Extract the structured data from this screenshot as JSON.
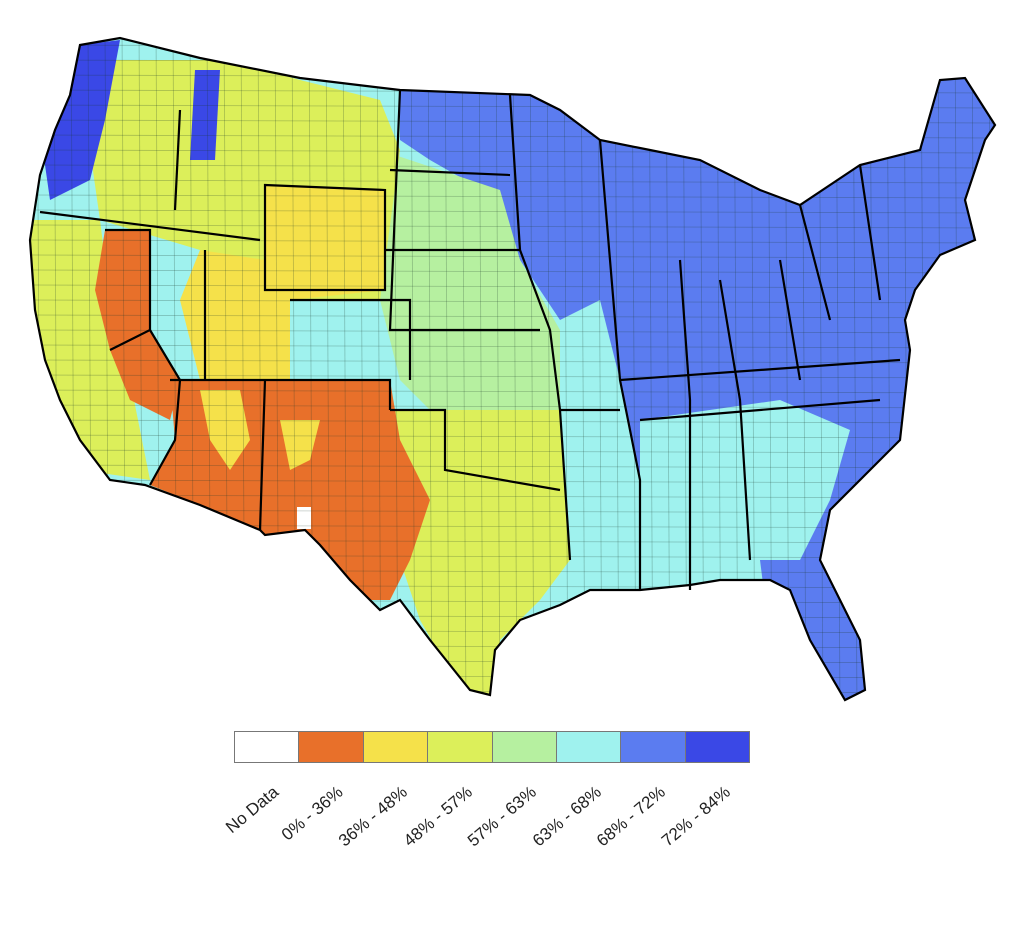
{
  "map": {
    "region": "Contiguous United States",
    "legend": {
      "classes": [
        {
          "label": "No Data",
          "color": "#ffffff"
        },
        {
          "label": "0% - 36%",
          "color": "#e8702a"
        },
        {
          "label": "36% - 48%",
          "color": "#f5e14a"
        },
        {
          "label": "48% - 57%",
          "color": "#dcef5a"
        },
        {
          "label": "57% - 63%",
          "color": "#b6f0a0"
        },
        {
          "label": "63% - 68%",
          "color": "#9ff2ee"
        },
        {
          "label": "68% - 72%",
          "color": "#5b7cf0"
        },
        {
          "label": "72% - 84%",
          "color": "#3a48e6"
        }
      ]
    },
    "zones": [
      {
        "name": "arizona-new-mexico",
        "class": "0% - 36%"
      },
      {
        "name": "nevada",
        "class": "0% - 36%"
      },
      {
        "name": "west-texas",
        "class": "0% - 36%"
      },
      {
        "name": "utah-wyoming",
        "class": "36% - 48%"
      },
      {
        "name": "texas-plains",
        "class": "48% - 57%"
      },
      {
        "name": "great-plains",
        "class": "57% - 63%"
      },
      {
        "name": "midwest-southeast",
        "class": "63% - 68%"
      },
      {
        "name": "east",
        "class": "68% - 72%"
      },
      {
        "name": "pacific-northwest",
        "class": "72% - 84%"
      }
    ]
  }
}
